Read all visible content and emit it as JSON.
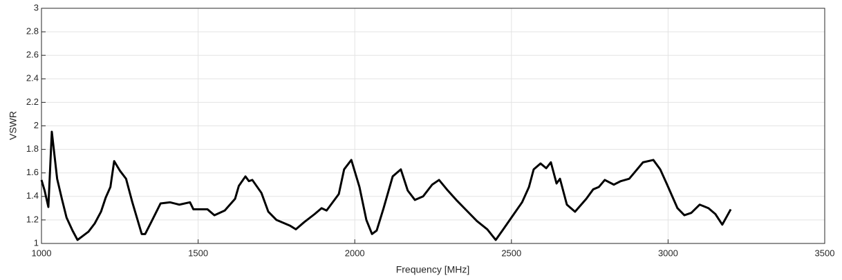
{
  "chart_data": {
    "type": "line",
    "x_label": "Frequency [MHz]",
    "y_label": "VSWR",
    "xlim": [
      1000,
      3500
    ],
    "ylim": [
      1,
      3
    ],
    "xticks": [
      1000,
      1500,
      2000,
      2500,
      3000,
      3500
    ],
    "yticks": [
      1,
      1.2,
      1.4,
      1.6,
      1.8,
      2,
      2.2,
      2.4,
      2.6,
      2.8,
      3
    ],
    "grid": true,
    "x": [
      1000,
      1010,
      1022,
      1033,
      1050,
      1065,
      1080,
      1099,
      1115,
      1130,
      1150,
      1170,
      1190,
      1205,
      1220,
      1232,
      1250,
      1270,
      1290,
      1320,
      1331,
      1350,
      1380,
      1410,
      1440,
      1474,
      1485,
      1530,
      1552,
      1585,
      1618,
      1630,
      1651,
      1662,
      1673,
      1702,
      1724,
      1750,
      1794,
      1812,
      1838,
      1872,
      1894,
      1910,
      1949,
      1966,
      1989,
      2015,
      2037,
      2055,
      2070,
      2092,
      2121,
      2147,
      2169,
      2192,
      2218,
      2247,
      2269,
      2297,
      2324,
      2357,
      2390,
      2423,
      2450,
      2474,
      2500,
      2534,
      2556,
      2571,
      2593,
      2611,
      2626,
      2644,
      2655,
      2677,
      2703,
      2739,
      2761,
      2779,
      2798,
      2827,
      2849,
      2876,
      2898,
      2920,
      2953,
      2975,
      2997,
      3030,
      3052,
      3074,
      3101,
      3129,
      3151,
      3173,
      3200
    ],
    "series": [
      {
        "name": "VSWR",
        "color": "#000000",
        "values": [
          1.54,
          1.45,
          1.31,
          1.95,
          1.55,
          1.38,
          1.22,
          1.11,
          1.03,
          1.06,
          1.1,
          1.17,
          1.27,
          1.39,
          1.48,
          1.7,
          1.62,
          1.55,
          1.35,
          1.08,
          1.08,
          1.18,
          1.34,
          1.35,
          1.33,
          1.35,
          1.29,
          1.29,
          1.24,
          1.28,
          1.38,
          1.49,
          1.57,
          1.53,
          1.54,
          1.43,
          1.27,
          1.2,
          1.15,
          1.12,
          1.18,
          1.25,
          1.3,
          1.28,
          1.42,
          1.63,
          1.71,
          1.48,
          1.2,
          1.08,
          1.11,
          1.3,
          1.57,
          1.63,
          1.45,
          1.37,
          1.4,
          1.5,
          1.54,
          1.45,
          1.37,
          1.28,
          1.19,
          1.12,
          1.03,
          1.12,
          1.22,
          1.35,
          1.48,
          1.63,
          1.68,
          1.64,
          1.69,
          1.51,
          1.55,
          1.33,
          1.27,
          1.38,
          1.46,
          1.48,
          1.54,
          1.5,
          1.53,
          1.55,
          1.62,
          1.69,
          1.71,
          1.63,
          1.5,
          1.3,
          1.24,
          1.26,
          1.33,
          1.3,
          1.25,
          1.16,
          1.29
        ]
      }
    ]
  }
}
